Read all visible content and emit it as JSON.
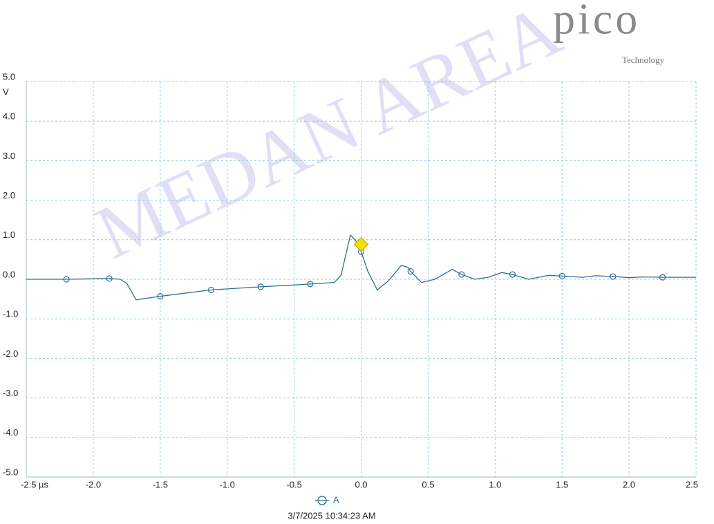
{
  "logo": {
    "brand": "pico",
    "tagline": "Technology"
  },
  "watermark": "MEDAN AREA",
  "chart_data": {
    "type": "line",
    "y_unit": "V",
    "x": [
      -2.5,
      -2.2,
      -1.88,
      -1.8,
      -1.75,
      -1.68,
      -1.5,
      -1.12,
      -0.75,
      -0.38,
      -0.2,
      -0.15,
      -0.08,
      -0.02,
      0,
      0.05,
      0.12,
      0.2,
      0.3,
      0.35,
      0.37,
      0.45,
      0.55,
      0.68,
      0.75,
      0.85,
      0.95,
      1.05,
      1.13,
      1.25,
      1.4,
      1.5,
      1.65,
      1.75,
      1.88,
      2.0,
      2.1,
      2.25,
      2.5
    ],
    "series": [
      {
        "name": "A",
        "color": "#2b6f95",
        "values": [
          0,
          0,
          0.02,
          0,
          -0.1,
          -0.52,
          -0.43,
          -0.27,
          -0.19,
          -0.12,
          -0.08,
          0.1,
          1.12,
          0.9,
          0.7,
          0.2,
          -0.27,
          -0.05,
          0.35,
          0.3,
          0.2,
          -0.08,
          0,
          0.25,
          0.12,
          0,
          0.05,
          0.17,
          0.12,
          0,
          0.1,
          0.08,
          0.05,
          0.09,
          0.07,
          0.04,
          0.06,
          0.05,
          0.05
        ]
      }
    ],
    "trigger": {
      "x": 0,
      "value": 0.88,
      "color": "#f2e000"
    },
    "xlim": [
      -2.5,
      2.5
    ],
    "xticks": [
      {
        "value": -2.5,
        "label": "-2.5 µs"
      },
      {
        "value": -2,
        "label": "-2.0"
      },
      {
        "value": -1.5,
        "label": "-1.5"
      },
      {
        "value": -1,
        "label": "-1.0"
      },
      {
        "value": -0.5,
        "label": "-0.5"
      },
      {
        "value": 0,
        "label": "0.0"
      },
      0.5,
      {
        "value": 1,
        "label": "1.0"
      },
      1.5,
      {
        "value": 2,
        "label": "2.0"
      },
      2.5
    ],
    "ylim": [
      -5,
      5
    ],
    "yticks": [
      {
        "value": 5,
        "label": "5.0"
      },
      {
        "value": 4,
        "label": "4.0"
      },
      {
        "value": 3,
        "label": "3.0"
      },
      {
        "value": 2,
        "label": "2.0"
      },
      {
        "value": 1,
        "label": "1.0"
      },
      {
        "value": 0,
        "label": "0.0"
      },
      {
        "value": -1,
        "label": "-1.0"
      },
      {
        "value": -2,
        "label": "-2.0"
      },
      {
        "value": -3,
        "label": "-3.0"
      },
      {
        "value": -4,
        "label": "-4.0"
      },
      {
        "value": -5,
        "label": "-5.0"
      }
    ],
    "grid": true,
    "timestamp": "3/7/2025 10:34:23 AM"
  }
}
